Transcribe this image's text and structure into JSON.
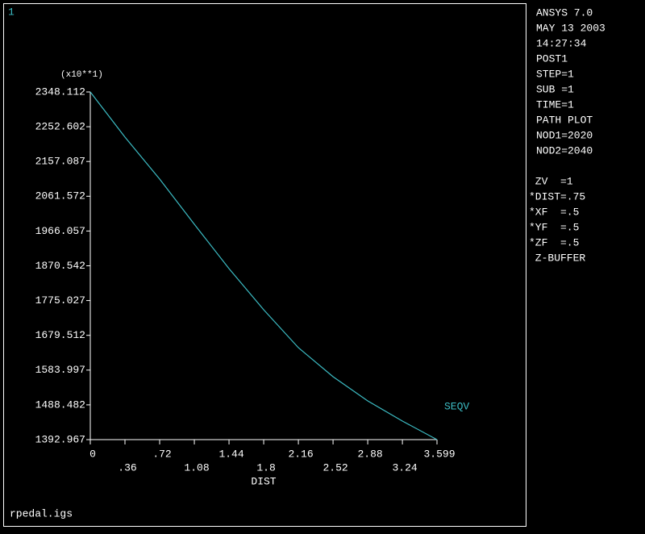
{
  "window_number": "1",
  "file_name": "rpedal.igs",
  "info_panel": [
    [
      "ANSYS 7.0",
      "MAY 13 2003",
      "14:27:34",
      "POST1",
      "STEP=1",
      "SUB =1",
      "TIME=1",
      "PATH PLOT",
      "NOD1=2020",
      "NOD2=2040"
    ],
    [
      " ZV  =1",
      "*DIST=.75",
      "*XF  =.5",
      "*YF  =.5",
      "*ZF  =.5",
      " Z-BUFFER"
    ]
  ],
  "chart_data": {
    "type": "line",
    "y_multiplier": "(x10**1)",
    "xlabel": "DIST",
    "x": [
      0,
      0.36,
      0.72,
      1.08,
      1.44,
      1.8,
      2.16,
      2.52,
      2.88,
      3.24,
      3.599
    ],
    "series": [
      {
        "name": "SEQV",
        "color": "#3cbcc4",
        "values": [
          2348.112,
          2224,
          2108.8,
          1984.7,
          1862.8,
          1749.8,
          1645.6,
          1565.8,
          1499.3,
          1444,
          1392.967
        ]
      }
    ],
    "xlim": [
      0,
      3.599
    ],
    "ylim": [
      1392.967,
      2348.112
    ],
    "xticks": [
      0,
      {
        "value": 0.36,
        "label": ".36"
      },
      {
        "value": 0.72,
        "label": ".72"
      },
      1.08,
      1.44,
      1.8,
      2.16,
      2.52,
      2.88,
      3.24,
      3.599
    ],
    "yticks": [
      1392.967,
      1488.482,
      1583.997,
      1679.512,
      1775.027,
      1870.542,
      1966.057,
      2061.572,
      2157.087,
      2252.602,
      2348.112
    ]
  }
}
